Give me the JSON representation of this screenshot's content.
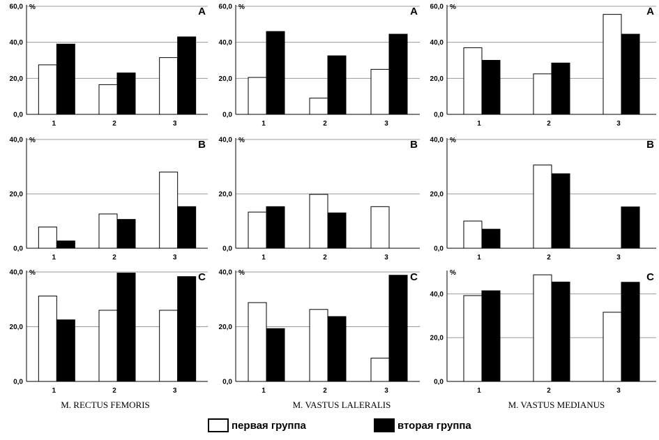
{
  "legend": {
    "first_group": {
      "label": "первая группа",
      "color": "#ffffff"
    },
    "second_group": {
      "label": "вторая группа",
      "color": "#000000"
    }
  },
  "muscles": [
    "M. RECTUS FEMORIS",
    "M. VASTUS LALERALIS",
    "M. VASTUS MEDIANUS"
  ],
  "chart_data": [
    {
      "type": "bar",
      "panel": "A",
      "muscle": "M. RECTUS FEMORIS",
      "unit": "%",
      "categories": [
        "1",
        "2",
        "3"
      ],
      "ylim": [
        0,
        60
      ],
      "yticks": [
        "0,0",
        "20,0",
        "40,0",
        "60,0"
      ],
      "grid": true,
      "series": [
        {
          "name": "первая группа",
          "values": [
            27.5,
            16.5,
            31.5
          ]
        },
        {
          "name": "вторая группа",
          "values": [
            39,
            23,
            43
          ]
        }
      ]
    },
    {
      "type": "bar",
      "panel": "A",
      "muscle": "M. VASTUS LALERALIS",
      "unit": "%",
      "categories": [
        "1",
        "2",
        "3"
      ],
      "ylim": [
        0,
        60
      ],
      "yticks": [
        "0,0",
        "20,0",
        "40,0",
        "60,0"
      ],
      "grid": true,
      "series": [
        {
          "name": "первая группа",
          "values": [
            20.5,
            9,
            25
          ]
        },
        {
          "name": "вторая группа",
          "values": [
            46,
            32.5,
            44.5
          ]
        }
      ]
    },
    {
      "type": "bar",
      "panel": "A",
      "muscle": "M. VASTUS MEDIANUS",
      "unit": "%",
      "categories": [
        "1",
        "2",
        "3"
      ],
      "ylim": [
        0,
        60
      ],
      "yticks": [
        "0,0",
        "20,0",
        "40,0",
        "60,0"
      ],
      "grid": true,
      "series": [
        {
          "name": "первая группа",
          "values": [
            37,
            22.5,
            55.5
          ]
        },
        {
          "name": "вторая группа",
          "values": [
            30,
            28.5,
            44.5
          ]
        }
      ]
    },
    {
      "type": "bar",
      "panel": "B",
      "muscle": "M. RECTUS FEMORIS",
      "unit": "%",
      "categories": [
        "1",
        "2",
        "3"
      ],
      "ylim": [
        0,
        40
      ],
      "yticks": [
        "0,0",
        "20,0",
        "40,0"
      ],
      "grid": true,
      "series": [
        {
          "name": "первая группа",
          "values": [
            7.8,
            12.6,
            28
          ]
        },
        {
          "name": "вторая группа",
          "values": [
            2.7,
            10.6,
            15.3
          ]
        }
      ]
    },
    {
      "type": "bar",
      "panel": "B",
      "muscle": "M. VASTUS LALERALIS",
      "unit": "%",
      "categories": [
        "1",
        "2",
        "3"
      ],
      "ylim": [
        0,
        40
      ],
      "yticks": [
        "0,0",
        "20,0",
        "40,0"
      ],
      "grid": true,
      "series": [
        {
          "name": "первая группа",
          "values": [
            13.3,
            19.8,
            15.3
          ]
        },
        {
          "name": "вторая группа",
          "values": [
            15.3,
            13,
            0
          ]
        }
      ]
    },
    {
      "type": "bar",
      "panel": "B",
      "muscle": "M. VASTUS MEDIANUS",
      "unit": "%",
      "categories": [
        "1",
        "2",
        "3"
      ],
      "ylim": [
        0,
        40
      ],
      "yticks": [
        "0,0",
        "20,0",
        "40,0"
      ],
      "grid": true,
      "series": [
        {
          "name": "первая группа",
          "values": [
            10,
            30.6,
            0
          ]
        },
        {
          "name": "вторая группа",
          "values": [
            7,
            27.4,
            15.2
          ]
        }
      ]
    },
    {
      "type": "bar",
      "panel": "C",
      "muscle": "M. RECTUS FEMORIS",
      "unit": "%",
      "categories": [
        "1",
        "2",
        "3"
      ],
      "ylim": [
        0,
        40
      ],
      "yticks": [
        "0,0",
        "20,0",
        "40,0"
      ],
      "grid": true,
      "series": [
        {
          "name": "первая группа",
          "values": [
            31.2,
            26,
            26
          ]
        },
        {
          "name": "вторая группа",
          "values": [
            22.5,
            39.6,
            38.3
          ]
        }
      ]
    },
    {
      "type": "bar",
      "panel": "C",
      "muscle": "M. VASTUS LALERALIS",
      "unit": "%",
      "categories": [
        "1",
        "2",
        "3"
      ],
      "ylim": [
        0,
        40
      ],
      "yticks": [
        "0,0",
        "20,0",
        "40,0"
      ],
      "grid": true,
      "series": [
        {
          "name": "первая группа",
          "values": [
            28.8,
            26.3,
            8.5
          ]
        },
        {
          "name": "вторая группа",
          "values": [
            19.3,
            23.7,
            38.8
          ]
        }
      ]
    },
    {
      "type": "bar",
      "panel": "C",
      "muscle": "M. VASTUS MEDIANUS",
      "unit": "%",
      "categories": [
        "1",
        "2",
        "3"
      ],
      "ylim": [
        0,
        50
      ],
      "yticks": [
        "0,0",
        "20,0",
        "40,0"
      ],
      "grid": true,
      "series": [
        {
          "name": "первая группа",
          "values": [
            39.2,
            48.7,
            31.6
          ]
        },
        {
          "name": "вторая группа",
          "values": [
            41.4,
            45.4,
            45.3
          ]
        }
      ]
    }
  ]
}
